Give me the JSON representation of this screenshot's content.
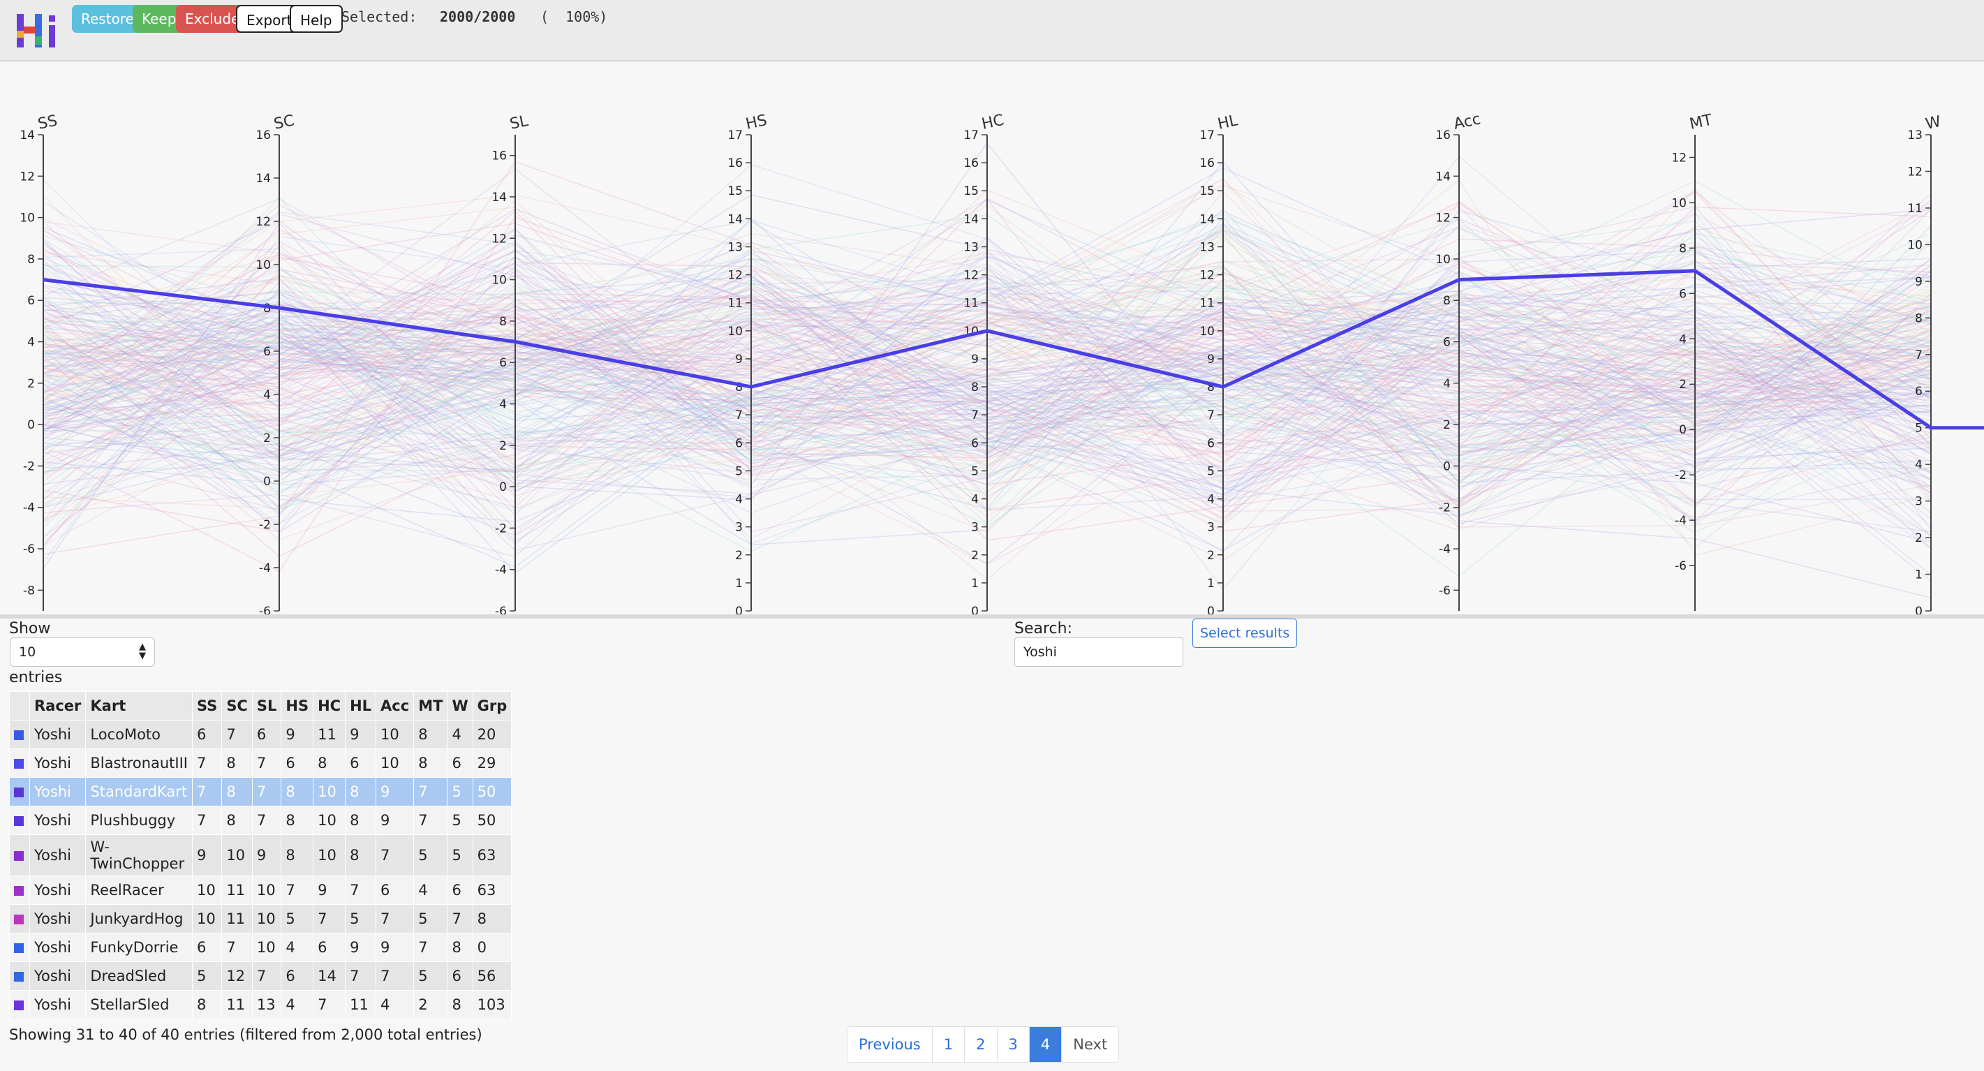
{
  "toolbar": {
    "restore": "Restore",
    "keep": "Keep",
    "exclude": "Exclude",
    "export": "Export",
    "help": "Help",
    "selected_label": "Selected:",
    "selected_count": "2000/2000",
    "selected_pct": "(  100%)"
  },
  "axes": [
    {
      "name": "SS",
      "min": -9,
      "max": 14,
      "ticks": [
        -8,
        -6,
        -4,
        -2,
        0,
        2,
        4,
        6,
        8,
        10,
        12,
        14
      ]
    },
    {
      "name": "SC",
      "min": -6,
      "max": 16,
      "ticks": [
        -6,
        -4,
        -2,
        0,
        2,
        4,
        6,
        8,
        10,
        12,
        14,
        16
      ]
    },
    {
      "name": "SL",
      "min": -6,
      "max": 17,
      "ticks": [
        -6,
        -4,
        -2,
        0,
        2,
        4,
        6,
        8,
        10,
        12,
        14,
        16
      ]
    },
    {
      "name": "HS",
      "min": 0,
      "max": 17,
      "ticks": [
        0,
        1,
        2,
        3,
        4,
        5,
        6,
        7,
        8,
        9,
        10,
        11,
        12,
        13,
        14,
        15,
        16,
        17
      ]
    },
    {
      "name": "HC",
      "min": 0,
      "max": 17,
      "ticks": [
        0,
        1,
        2,
        3,
        4,
        5,
        6,
        7,
        8,
        9,
        10,
        11,
        12,
        13,
        14,
        15,
        16,
        17
      ]
    },
    {
      "name": "HL",
      "min": 0,
      "max": 17,
      "ticks": [
        0,
        1,
        2,
        3,
        4,
        5,
        6,
        7,
        8,
        9,
        10,
        11,
        12,
        13,
        14,
        15,
        16,
        17
      ]
    },
    {
      "name": "Acc",
      "min": -7,
      "max": 16,
      "ticks": [
        -6,
        -4,
        -2,
        0,
        2,
        4,
        6,
        8,
        10,
        12,
        14,
        16
      ]
    },
    {
      "name": "MT",
      "min": -8,
      "max": 13,
      "ticks": [
        -6,
        -4,
        -2,
        0,
        2,
        4,
        6,
        8,
        10,
        12
      ]
    },
    {
      "name": "W",
      "min": 0,
      "max": 13,
      "ticks": [
        0,
        1,
        2,
        3,
        4,
        5,
        6,
        7,
        8,
        9,
        10,
        11,
        12,
        13
      ]
    }
  ],
  "highlight": {
    "values": [
      7,
      8,
      7,
      8,
      10,
      8,
      9,
      7,
      5
    ],
    "color": "#4a3ee6"
  },
  "table_controls": {
    "show_label": "Show",
    "page_size": "10",
    "entries_label": "entries",
    "search_label": "Search:",
    "search_value": "Yoshi",
    "select_results": "Select results"
  },
  "table": {
    "columns": [
      "",
      "Racer",
      "Kart",
      "SS",
      "SC",
      "SL",
      "HS",
      "HC",
      "HL",
      "Acc",
      "MT",
      "W",
      "Grp"
    ],
    "rows": [
      {
        "color": "#3a5ae6",
        "cells": [
          "Yoshi",
          "LocoMoto",
          "6",
          "7",
          "6",
          "9",
          "11",
          "9",
          "10",
          "8",
          "4",
          "20"
        ]
      },
      {
        "color": "#4d48e8",
        "cells": [
          "Yoshi",
          "BlastronautIII",
          "7",
          "8",
          "7",
          "6",
          "8",
          "6",
          "10",
          "8",
          "6",
          "29"
        ]
      },
      {
        "color": "#5a36d6",
        "selected": true,
        "cells": [
          "Yoshi",
          "StandardKart",
          "7",
          "8",
          "7",
          "8",
          "10",
          "8",
          "9",
          "7",
          "5",
          "50"
        ]
      },
      {
        "color": "#5a36d6",
        "cells": [
          "Yoshi",
          "Plushbuggy",
          "7",
          "8",
          "7",
          "8",
          "10",
          "8",
          "9",
          "7",
          "5",
          "50"
        ]
      },
      {
        "color": "#8a2ed0",
        "cells": [
          "Yoshi",
          "W-TwinChopper",
          "9",
          "10",
          "9",
          "8",
          "10",
          "8",
          "7",
          "5",
          "5",
          "63"
        ]
      },
      {
        "color": "#a030c8",
        "cells": [
          "Yoshi",
          "ReelRacer",
          "10",
          "11",
          "10",
          "7",
          "9",
          "7",
          "6",
          "4",
          "6",
          "63"
        ]
      },
      {
        "color": "#b838bc",
        "cells": [
          "Yoshi",
          "JunkyardHog",
          "10",
          "11",
          "10",
          "5",
          "7",
          "5",
          "7",
          "5",
          "7",
          "8"
        ]
      },
      {
        "color": "#2e62e8",
        "cells": [
          "Yoshi",
          "FunkyDorrie",
          "6",
          "7",
          "10",
          "4",
          "6",
          "9",
          "9",
          "7",
          "8",
          "0"
        ]
      },
      {
        "color": "#3168e0",
        "cells": [
          "Yoshi",
          "DreadSled",
          "5",
          "12",
          "7",
          "6",
          "14",
          "7",
          "7",
          "5",
          "6",
          "56"
        ]
      },
      {
        "color": "#6a34d8",
        "cells": [
          "Yoshi",
          "StellarSled",
          "8",
          "11",
          "13",
          "4",
          "7",
          "11",
          "4",
          "2",
          "8",
          "103"
        ]
      }
    ]
  },
  "footer": {
    "info": "Showing 31 to 40 of 40 entries (filtered from 2,000 total entries)"
  },
  "pagination": {
    "previous": "Previous",
    "pages": [
      "1",
      "2",
      "3",
      "4"
    ],
    "active": "4",
    "next": "Next"
  }
}
